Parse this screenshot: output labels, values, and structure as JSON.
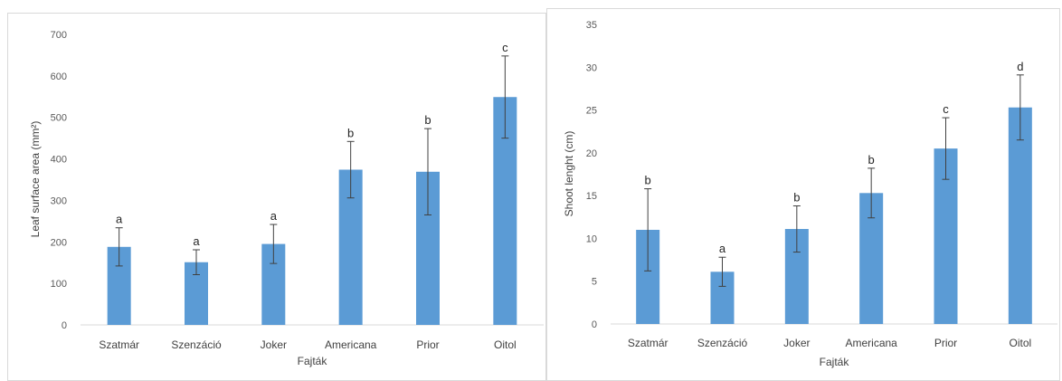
{
  "chart_data": [
    {
      "type": "bar",
      "categories": [
        "Szatmár",
        "Szenzáció",
        "Joker",
        "Americana",
        "Prior",
        "Oitol"
      ],
      "values": [
        188,
        151,
        195,
        374,
        369,
        549
      ],
      "error": [
        46,
        30,
        47,
        68,
        104,
        99
      ],
      "letters": [
        "a",
        "a",
        "a",
        "b",
        "b",
        "c"
      ],
      "xlabel": "Fajták",
      "ylabel": "Leaf surface area (mm²)",
      "ylim": [
        0,
        700
      ],
      "yticks": [
        0,
        100,
        200,
        300,
        400,
        500,
        600,
        700
      ],
      "grid": false,
      "bar_color": "#5b9bd5"
    },
    {
      "type": "bar",
      "categories": [
        "Szatmár",
        "Szenzáció",
        "Joker",
        "Americana",
        "Prior",
        "Oitol"
      ],
      "values": [
        11.0,
        6.1,
        11.1,
        15.3,
        20.5,
        25.3
      ],
      "error": [
        4.8,
        1.7,
        2.7,
        2.9,
        3.6,
        3.8
      ],
      "letters": [
        "b",
        "a",
        "b",
        "b",
        "c",
        "d"
      ],
      "xlabel": "Fajták",
      "ylabel": "Shoot lenght (cm)",
      "ylim": [
        0,
        35
      ],
      "yticks": [
        0,
        5,
        10,
        15,
        20,
        25,
        30,
        35
      ],
      "grid": false,
      "bar_color": "#5b9bd5"
    }
  ]
}
